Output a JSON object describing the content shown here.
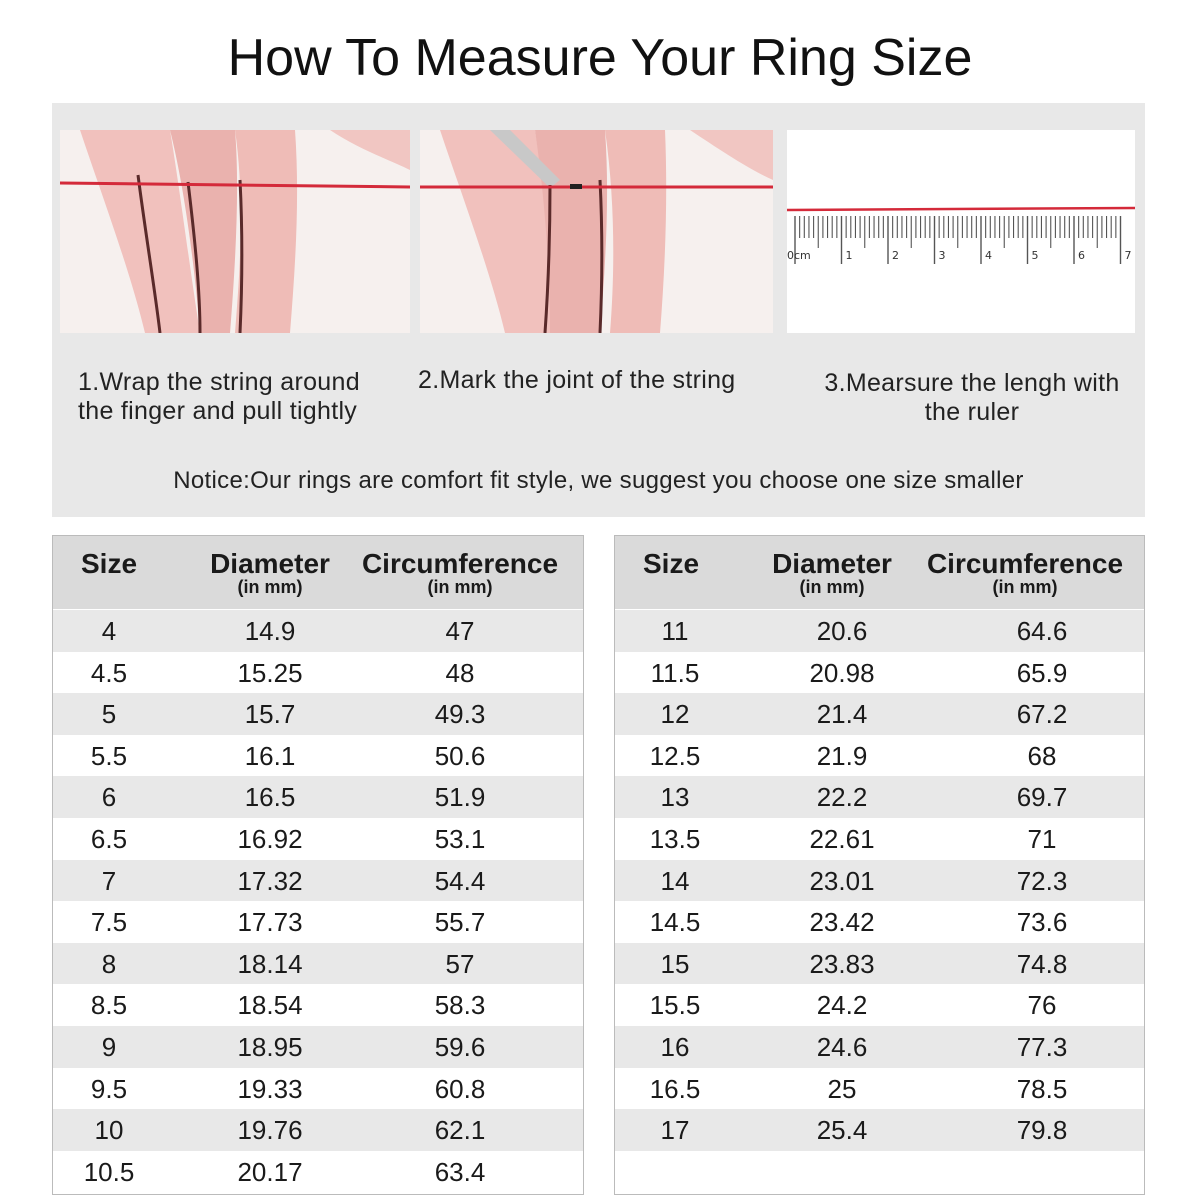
{
  "title": "How To Measure Your Ring Size",
  "steps": [
    {
      "line1": "1.Wrap the string around",
      "line2": "the finger and pull tightly"
    },
    {
      "line1": "2.Mark the joint of the string",
      "line2": ""
    },
    {
      "line1": "3.Mearsure the lengh with",
      "line2": "the ruler"
    }
  ],
  "ruler": {
    "labels": [
      "0cm",
      "1",
      "2",
      "3",
      "4",
      "5",
      "6",
      "7"
    ]
  },
  "notice": "Notice:Our rings are comfort fit style, we suggest you choose one size smaller",
  "table": {
    "headers": {
      "size": "Size",
      "diameter": "Diameter",
      "circumference": "Circumference",
      "unit": "(in mm)"
    },
    "left": [
      [
        "4",
        "14.9",
        "47"
      ],
      [
        "4.5",
        "15.25",
        "48"
      ],
      [
        "5",
        "15.7",
        "49.3"
      ],
      [
        "5.5",
        "16.1",
        "50.6"
      ],
      [
        "6",
        "16.5",
        "51.9"
      ],
      [
        "6.5",
        "16.92",
        "53.1"
      ],
      [
        "7",
        "17.32",
        "54.4"
      ],
      [
        "7.5",
        "17.73",
        "55.7"
      ],
      [
        "8",
        "18.14",
        "57"
      ],
      [
        "8.5",
        "18.54",
        "58.3"
      ],
      [
        "9",
        "18.95",
        "59.6"
      ],
      [
        "9.5",
        "19.33",
        "60.8"
      ],
      [
        "10",
        "19.76",
        "62.1"
      ],
      [
        "10.5",
        "20.17",
        "63.4"
      ]
    ],
    "right": [
      [
        "11",
        "20.6",
        "64.6"
      ],
      [
        "11.5",
        "20.98",
        "65.9"
      ],
      [
        "12",
        "21.4",
        "67.2"
      ],
      [
        "12.5",
        "21.9",
        "68"
      ],
      [
        "13",
        "22.2",
        "69.7"
      ],
      [
        "13.5",
        "22.61",
        "71"
      ],
      [
        "14",
        "23.01",
        "72.3"
      ],
      [
        "14.5",
        "23.42",
        "73.6"
      ],
      [
        "15",
        "23.83",
        "74.8"
      ],
      [
        "15.5",
        "24.2",
        "76"
      ],
      [
        "16",
        "24.6",
        "77.3"
      ],
      [
        "16.5",
        "25",
        "78.5"
      ],
      [
        "17",
        "25.4",
        "79.8"
      ]
    ]
  },
  "colors": {
    "string": "#d42a3a",
    "panel": "#e8e8e8",
    "row_alt": "#e8e8e8",
    "header": "#dadada"
  }
}
